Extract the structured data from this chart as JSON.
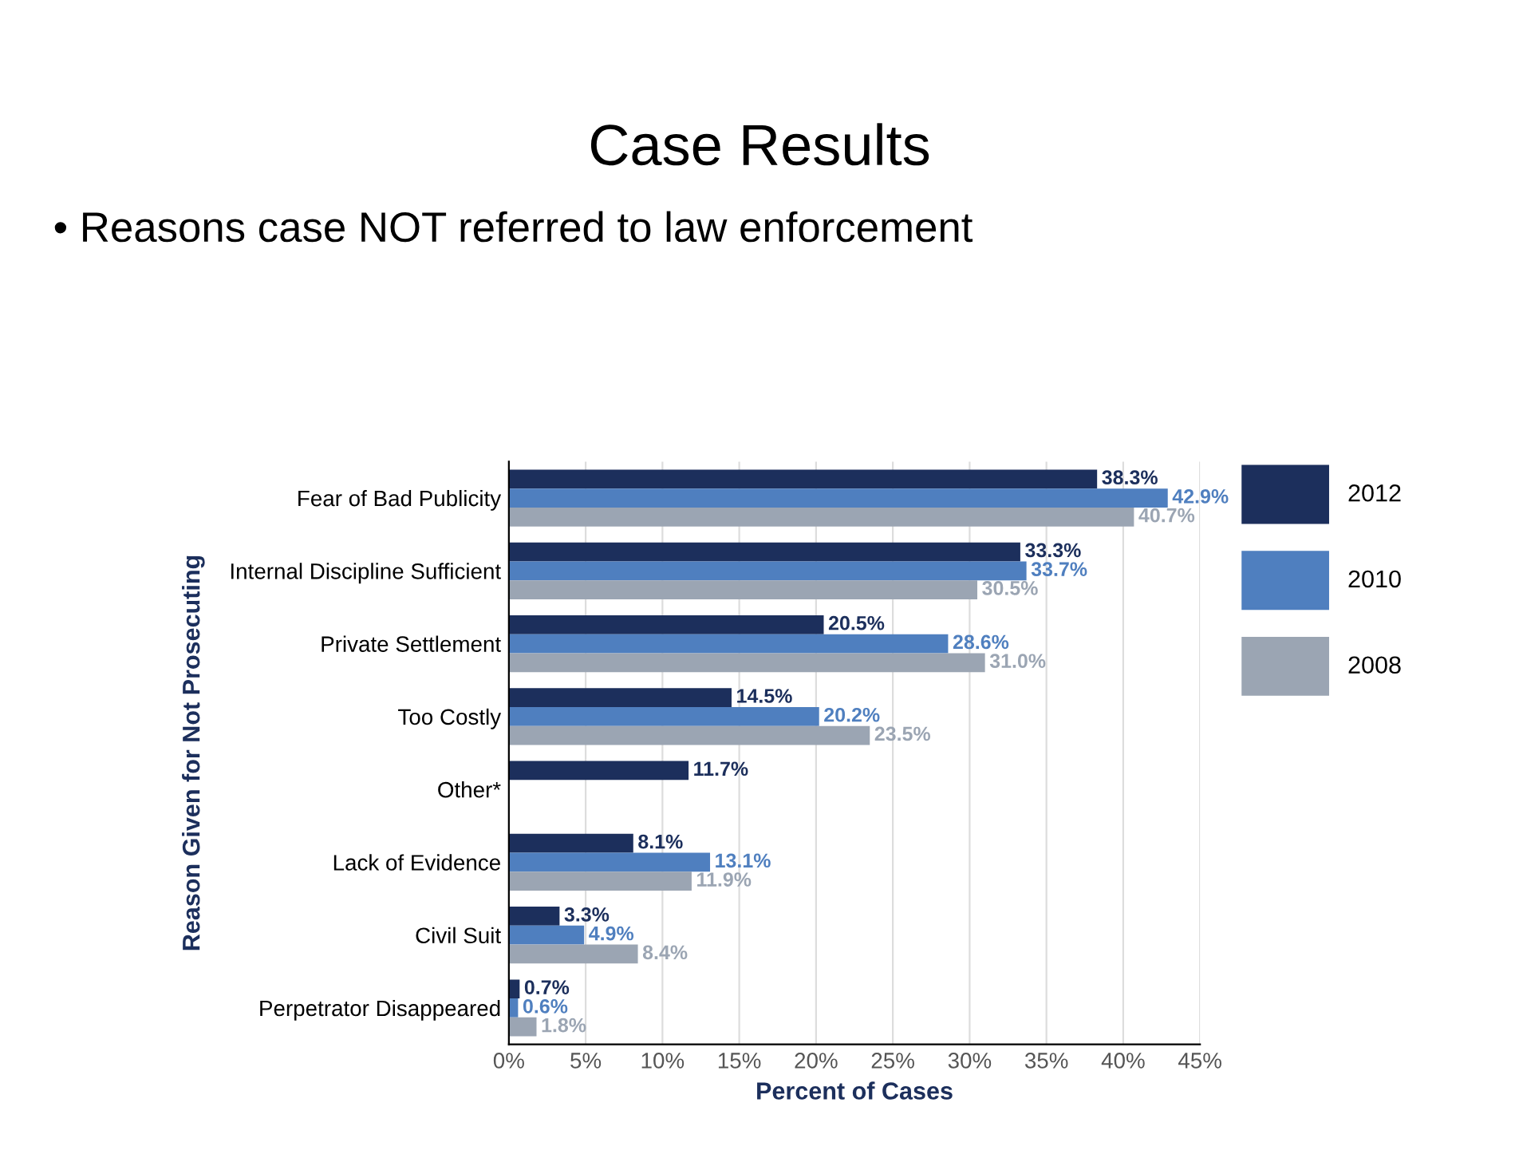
{
  "chart_data": {
    "type": "bar",
    "orientation": "horizontal",
    "title": "Case Results",
    "subtitle": "• Reasons case NOT referred to law enforcement",
    "xlabel": "Percent of Cases",
    "ylabel": "Reason Given for Not Prosecuting",
    "categories": [
      "Fear of Bad Publicity",
      "Internal Discipline Sufficient",
      "Private Settlement",
      "Too Costly",
      "Other*",
      "Lack of Evidence",
      "Civil Suit",
      "Perpetrator Disappeared"
    ],
    "series": [
      {
        "name": "2012",
        "color": "#1c2f5c",
        "values": [
          38.3,
          33.3,
          20.5,
          14.5,
          11.7,
          8.1,
          3.3,
          0.7
        ],
        "value_labels": [
          "38.3%",
          "33.3%",
          "20.5%",
          "14.5%",
          "11.7%",
          "8.1%",
          "3.3%",
          "0.7%"
        ]
      },
      {
        "name": "2010",
        "color": "#4f7fbf",
        "values": [
          42.9,
          33.7,
          28.6,
          20.2,
          null,
          13.1,
          4.9,
          0.6
        ],
        "value_labels": [
          "42.9%",
          "33.7%",
          "28.6%",
          "20.2%",
          null,
          "13.1%",
          "4.9%",
          "0.6%"
        ]
      },
      {
        "name": "2008",
        "color": "#9ba5b3",
        "values": [
          40.7,
          30.5,
          31.0,
          23.5,
          null,
          11.9,
          8.4,
          1.8
        ],
        "value_labels": [
          "40.7%",
          "30.5%",
          "31.0%",
          "23.5%",
          null,
          "11.9%",
          "8.4%",
          "1.8%"
        ]
      }
    ],
    "xlim": [
      0,
      45
    ],
    "xticks": [
      {
        "value": 0,
        "label": "0%"
      },
      {
        "value": 5,
        "label": "5%"
      },
      {
        "value": 10,
        "label": "10%"
      },
      {
        "value": 15,
        "label": "15%"
      },
      {
        "value": 20,
        "label": "20%"
      },
      {
        "value": 25,
        "label": "25%"
      },
      {
        "value": 30,
        "label": "30%"
      },
      {
        "value": 35,
        "label": "35%"
      },
      {
        "value": 40,
        "label": "40%"
      },
      {
        "value": 45,
        "label": "45%"
      }
    ],
    "grid": "x",
    "legend": "top right"
  }
}
